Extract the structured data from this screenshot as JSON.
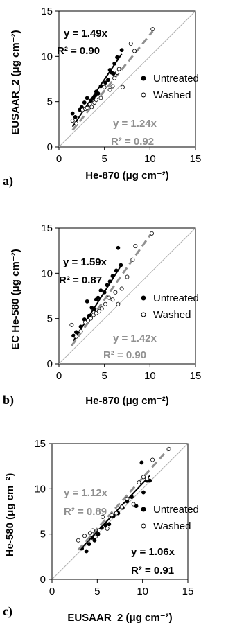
{
  "colors": {
    "untreated": "#000000",
    "washed_fill": "#ffffff",
    "washed_fit": "#909090",
    "one_to_one": "#b0b0b0"
  },
  "chart_data": [
    {
      "type": "scatter",
      "panel_label": "a)",
      "xlabel": "He-870 (μg cm⁻²)",
      "ylabel": "EUSAAR_2 (μg cm⁻²)",
      "xlim": [
        0,
        15
      ],
      "ylim": [
        0,
        15
      ],
      "xticks": [
        "0",
        "5",
        "10",
        "15"
      ],
      "yticks": [
        "0",
        "5",
        "10",
        "15"
      ],
      "grid": false,
      "legend_position": "right-middle",
      "legend": [
        "Untreated",
        "Washed"
      ],
      "one_to_one_line": true,
      "series": [
        {
          "name": "Untreated",
          "marker": "filled-circle",
          "slope": 1.49,
          "fit_label": "y = 1.49x",
          "r2_label": "R² = 0.90",
          "x": [
            1.5,
            1.8,
            2.3,
            2.5,
            2.8,
            3.1,
            3.3,
            3.5,
            3.8,
            4.0,
            4.1,
            4.3,
            4.6,
            5.1,
            5.4,
            5.6,
            5.8,
            6.0,
            6.1,
            6.4,
            6.9
          ],
          "y": [
            3.7,
            3.3,
            4.1,
            4.4,
            4.9,
            5.4,
            4.7,
            5.1,
            5.4,
            5.7,
            6.1,
            5.9,
            6.7,
            7.1,
            7.4,
            8.5,
            8.2,
            8.1,
            9.2,
            9.9,
            10.7
          ]
        },
        {
          "name": "Washed",
          "marker": "open-circle",
          "slope": 1.24,
          "fit_label": "y = 1.24x",
          "r2_label": "R² = 0.92",
          "x": [
            1.5,
            1.9,
            2.6,
            2.9,
            3.1,
            3.4,
            3.6,
            3.9,
            4.1,
            4.6,
            5.0,
            5.6,
            5.9,
            6.1,
            6.4,
            6.6,
            7.0,
            7.9,
            8.3,
            10.3
          ],
          "y": [
            2.9,
            2.6,
            4.1,
            4.2,
            4.3,
            4.7,
            4.4,
            4.9,
            5.2,
            5.4,
            6.6,
            6.3,
            6.7,
            7.6,
            8.2,
            8.6,
            6.6,
            11.4,
            10.6,
            13.0
          ]
        }
      ]
    },
    {
      "type": "scatter",
      "panel_label": "b)",
      "xlabel": "He-870 (μg cm⁻²)",
      "ylabel": "EC He-580 (μg cm⁻²)",
      "xlim": [
        0,
        15
      ],
      "ylim": [
        0,
        15
      ],
      "xticks": [
        "0",
        "5",
        "10",
        "15"
      ],
      "yticks": [
        "0",
        "5",
        "10",
        "15"
      ],
      "grid": false,
      "legend_position": "right-middle",
      "legend": [
        "Untreated",
        "Washed"
      ],
      "one_to_one_line": true,
      "series": [
        {
          "name": "Untreated",
          "marker": "filled-circle",
          "slope": 1.59,
          "fit_label": "y = 1.59x",
          "r2_label": "R² = 0.87",
          "x": [
            1.6,
            1.9,
            2.4,
            2.8,
            3.1,
            3.3,
            3.6,
            3.9,
            4.1,
            4.3,
            4.6,
            5.0,
            5.3,
            5.6,
            5.9,
            6.3,
            6.5,
            6.8
          ],
          "y": [
            3.1,
            3.5,
            4.1,
            4.9,
            6.9,
            5.3,
            6.2,
            6.0,
            7.1,
            7.3,
            8.1,
            7.9,
            8.7,
            9.1,
            9.7,
            10.3,
            12.8,
            10.9
          ]
        },
        {
          "name": "Washed",
          "marker": "open-circle",
          "slope": 1.42,
          "fit_label": "y = 1.42x",
          "r2_label": "R² = 0.90",
          "x": [
            1.4,
            1.9,
            2.4,
            2.9,
            3.2,
            3.5,
            3.8,
            4.1,
            4.4,
            4.7,
            5.1,
            5.5,
            5.9,
            6.2,
            6.5,
            6.9,
            7.5,
            8.1,
            8.4,
            10.2
          ],
          "y": [
            4.3,
            3.0,
            3.6,
            4.6,
            4.8,
            5.0,
            5.4,
            5.6,
            5.8,
            6.1,
            6.6,
            7.3,
            7.1,
            7.9,
            6.6,
            8.3,
            9.6,
            11.5,
            13.0,
            14.4
          ]
        }
      ]
    },
    {
      "type": "scatter",
      "panel_label": "c)",
      "xlabel": "EUSAAR_2 (μg cm⁻²)",
      "ylabel": "He-580 (μg cm⁻²)",
      "xlim": [
        0,
        15
      ],
      "ylim": [
        0,
        15
      ],
      "xticks": [
        "0",
        "5",
        "10",
        "15"
      ],
      "yticks": [
        "0",
        "5",
        "10",
        "15"
      ],
      "grid": false,
      "legend_position": "right-middle",
      "legend": [
        "Untreated",
        "Washed"
      ],
      "one_to_one_line": true,
      "series": [
        {
          "name": "Untreated",
          "marker": "filled-circle",
          "slope": 1.06,
          "fit_label": "y = 1.06x",
          "r2_label": "R² = 0.91",
          "x": [
            3.3,
            3.8,
            4.1,
            4.4,
            4.7,
            5.1,
            5.5,
            5.9,
            6.3,
            6.8,
            7.3,
            7.8,
            8.3,
            8.8,
            9.3,
            9.9,
            10.1,
            10.5,
            10.8
          ],
          "y": [
            3.4,
            3.1,
            3.9,
            4.6,
            4.3,
            5.0,
            5.7,
            6.0,
            6.1,
            7.0,
            7.3,
            7.9,
            8.6,
            9.1,
            8.1,
            12.9,
            9.6,
            10.9,
            10.9
          ]
        },
        {
          "name": "Washed",
          "marker": "open-circle",
          "slope": 1.12,
          "fit_label": "y = 1.12x",
          "r2_label": "R² = 0.89",
          "x": [
            2.9,
            3.6,
            4.2,
            4.5,
            4.8,
            5.2,
            5.6,
            6.1,
            6.6,
            7.1,
            7.7,
            8.3,
            9.0,
            9.6,
            10.1,
            10.5,
            11.1,
            12.9
          ],
          "y": [
            4.3,
            4.8,
            5.1,
            5.4,
            4.7,
            5.4,
            6.9,
            5.6,
            7.1,
            7.3,
            8.0,
            8.9,
            8.3,
            10.7,
            11.3,
            11.1,
            13.2,
            14.4
          ]
        }
      ]
    }
  ]
}
